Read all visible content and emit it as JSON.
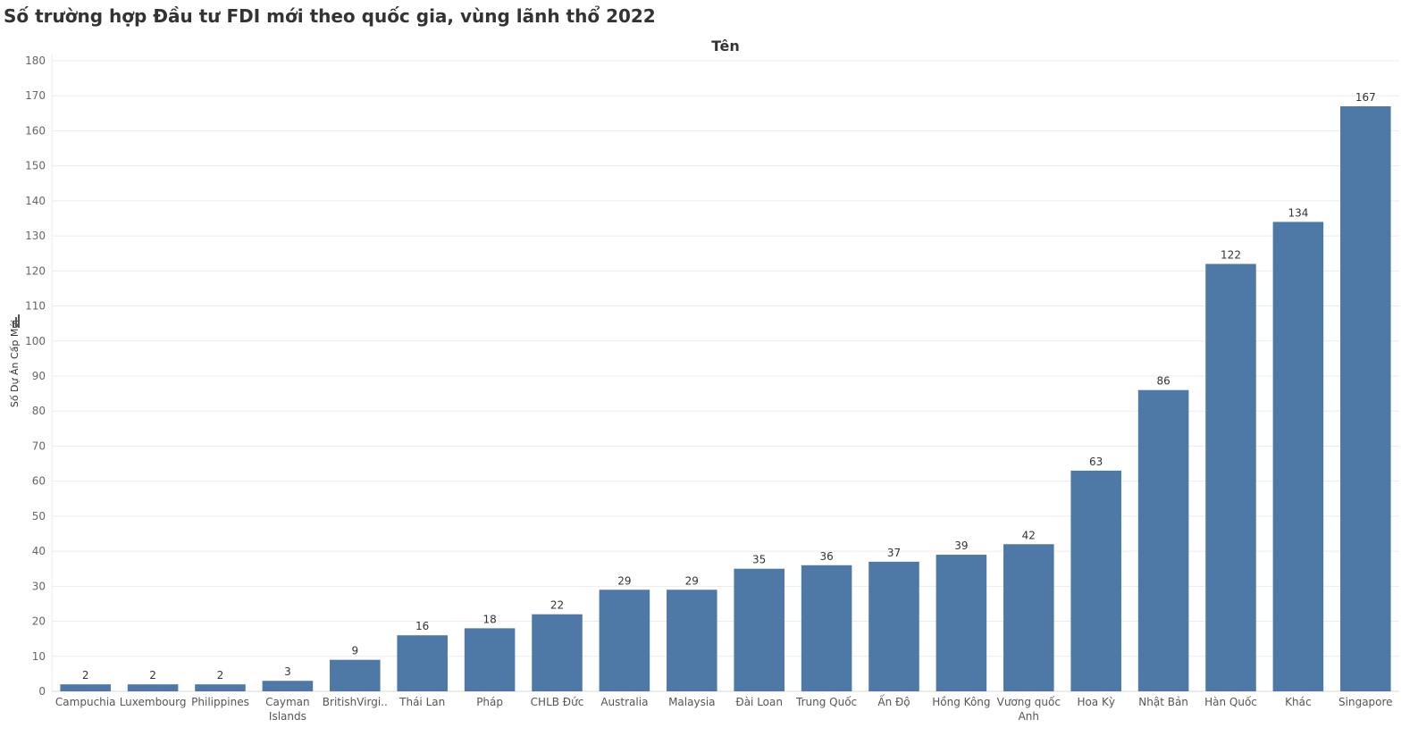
{
  "page": {
    "title": "Số trường hợp Đầu tư FDI mới theo quốc gia, vùng lãnh thổ 2022"
  },
  "chart_data": {
    "type": "bar",
    "header": "Tên",
    "ylabel": "Số Dự Án Cấp Mới",
    "ylim": [
      0,
      180
    ],
    "yticks": [
      0,
      10,
      20,
      30,
      40,
      50,
      60,
      70,
      80,
      90,
      100,
      110,
      120,
      130,
      140,
      150,
      160,
      170,
      180
    ],
    "grid": true,
    "categories": [
      [
        "Campuchia"
      ],
      [
        "Luxembourg"
      ],
      [
        "Philippines"
      ],
      [
        "Cayman",
        "Islands"
      ],
      [
        "BritishVirgi.."
      ],
      [
        "Thái Lan"
      ],
      [
        "Pháp"
      ],
      [
        "CHLB Đức"
      ],
      [
        "Australia"
      ],
      [
        "Malaysia"
      ],
      [
        "Đài Loan"
      ],
      [
        "Trung Quốc"
      ],
      [
        "Ấn Độ"
      ],
      [
        "Hồng Kông"
      ],
      [
        "Vương quốc",
        "Anh"
      ],
      [
        "Hoa Kỳ"
      ],
      [
        "Nhật Bản"
      ],
      [
        "Hàn Quốc"
      ],
      [
        "Khác"
      ],
      [
        "Singapore"
      ]
    ],
    "values": [
      2,
      2,
      2,
      3,
      9,
      16,
      18,
      22,
      29,
      29,
      35,
      36,
      37,
      39,
      42,
      63,
      86,
      122,
      134,
      167
    ],
    "colors": {
      "bar": "#4e79a7",
      "grid": "#ececec",
      "axis": "#d9d9d9"
    }
  }
}
